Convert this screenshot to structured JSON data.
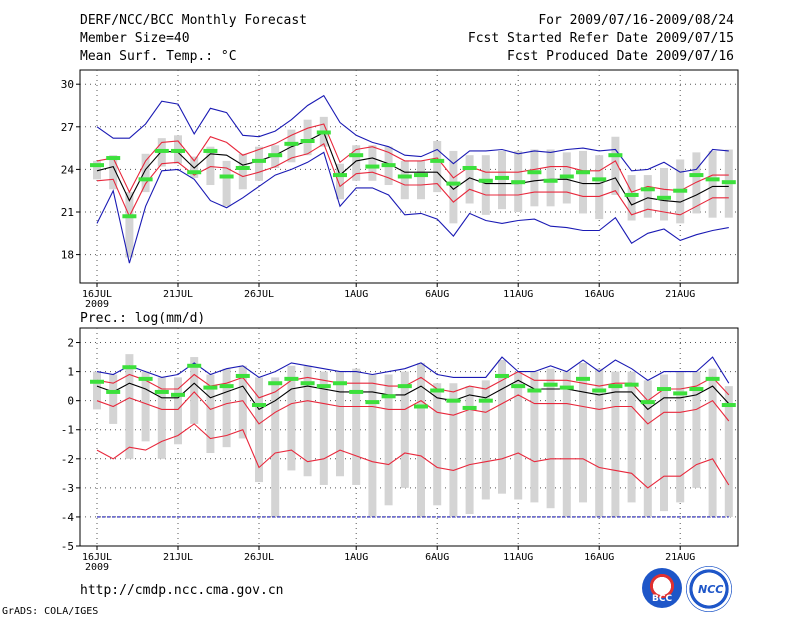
{
  "header": {
    "title": "DERF/NCC/BCC Monthly Forecast",
    "member_size": "Member Size=40",
    "variable": "Mean Surf. Temp.: °C",
    "period": "For 2009/07/16-2009/08/24",
    "started": "Fcst Started Refer Date 2009/07/15",
    "produced": "Fcst Produced Date 2009/07/16"
  },
  "footer": {
    "url": "http://cmdp.ncc.cma.gov.cn",
    "credit": "GrADS: COLA/IGES",
    "logo_left": "BCC",
    "logo_right": "NCC"
  },
  "colors": {
    "mean": "#000000",
    "spread": "#e8283c",
    "extreme": "#1a1ab4",
    "box": "#d4d4d4",
    "obs": "#3ce03c"
  },
  "chart_data": [
    {
      "type": "line",
      "title": "Mean Surf. Temp.: °C",
      "x_tick_labels": [
        "16JUL",
        "21JUL",
        "26JUL",
        "1AUG",
        "6AUG",
        "11AUG",
        "16AUG",
        "21AUG"
      ],
      "x_tick_index": [
        0,
        5,
        10,
        16,
        21,
        26,
        31,
        36
      ],
      "x_year_label": "2009",
      "ylim": [
        16,
        31
      ],
      "y_ticks": [
        18,
        21,
        24,
        27,
        30
      ],
      "n_days": 40,
      "series": [
        {
          "name": "Ensemble mean",
          "color": "#000000",
          "values": [
            23.9,
            24.2,
            21.8,
            24.0,
            25.3,
            25.2,
            24.1,
            25.1,
            25.0,
            24.3,
            24.6,
            25.0,
            25.6,
            26.0,
            26.6,
            23.6,
            24.6,
            24.8,
            24.4,
            23.8,
            23.8,
            23.8,
            22.6,
            23.4,
            23.0,
            23.0,
            23.0,
            23.2,
            23.3,
            23.3,
            23.0,
            23.0,
            23.4,
            21.5,
            22.0,
            21.8,
            21.7,
            22.2,
            22.8,
            22.8
          ]
        },
        {
          "name": "Upper spread",
          "color": "#e8283c",
          "values": [
            24.6,
            24.8,
            22.4,
            24.6,
            25.9,
            26.0,
            24.6,
            26.3,
            25.9,
            25.0,
            25.4,
            25.8,
            26.4,
            26.9,
            27.2,
            24.5,
            25.4,
            25.6,
            25.2,
            24.6,
            24.6,
            24.8,
            23.4,
            24.2,
            23.8,
            23.8,
            23.8,
            24.0,
            24.2,
            24.2,
            23.9,
            23.9,
            24.6,
            22.4,
            22.8,
            22.6,
            22.5,
            23.1,
            23.6,
            23.6
          ]
        },
        {
          "name": "Lower spread",
          "color": "#e8283c",
          "values": [
            23.2,
            23.3,
            20.7,
            23.0,
            24.4,
            24.5,
            23.6,
            24.2,
            24.1,
            23.5,
            23.8,
            24.2,
            24.8,
            25.1,
            25.8,
            22.8,
            23.7,
            23.8,
            23.4,
            22.9,
            22.9,
            23.0,
            21.7,
            22.6,
            22.2,
            22.2,
            22.2,
            22.4,
            22.4,
            22.4,
            22.1,
            22.1,
            22.5,
            20.8,
            21.2,
            21.0,
            20.8,
            21.4,
            22.0,
            22.0
          ]
        },
        {
          "name": "Maximum",
          "color": "#1a1ab4",
          "values": [
            27.0,
            26.2,
            26.2,
            27.2,
            28.8,
            28.6,
            26.5,
            28.3,
            28.0,
            26.4,
            26.3,
            26.7,
            27.5,
            28.5,
            29.2,
            27.3,
            26.4,
            25.9,
            25.6,
            25.0,
            24.9,
            25.4,
            24.4,
            25.3,
            25.3,
            25.4,
            25.1,
            25.3,
            25.2,
            25.4,
            25.5,
            25.3,
            25.4,
            23.9,
            24.0,
            24.5,
            23.8,
            24.0,
            25.4,
            25.3
          ]
        },
        {
          "name": "Minimum",
          "color": "#1a1ab4",
          "values": [
            20.2,
            22.5,
            17.4,
            21.4,
            23.9,
            24.0,
            23.3,
            21.8,
            21.3,
            22.0,
            22.8,
            23.6,
            24.0,
            24.5,
            25.2,
            21.4,
            22.7,
            22.7,
            22.2,
            20.8,
            20.9,
            20.5,
            19.3,
            20.9,
            20.4,
            20.2,
            20.4,
            20.5,
            20.0,
            19.9,
            19.7,
            19.7,
            20.6,
            18.8,
            19.5,
            19.8,
            19.0,
            19.4,
            19.7,
            19.9
          ]
        }
      ],
      "box_ranges": [
        [
          23.3,
          24.6
        ],
        [
          22.6,
          25.0
        ],
        [
          17.8,
          22.4
        ],
        [
          22.4,
          25.1
        ],
        [
          24.2,
          26.2
        ],
        [
          24.4,
          26.4
        ],
        [
          23.4,
          24.9
        ],
        [
          22.9,
          25.6
        ],
        [
          21.4,
          24.6
        ],
        [
          22.6,
          25.1
        ],
        [
          23.2,
          25.6
        ],
        [
          24.1,
          25.7
        ],
        [
          24.5,
          26.8
        ],
        [
          25.0,
          27.5
        ],
        [
          25.6,
          27.7
        ],
        [
          21.9,
          24.4
        ],
        [
          23.2,
          25.7
        ],
        [
          23.2,
          25.7
        ],
        [
          22.9,
          25.6
        ],
        [
          21.9,
          24.6
        ],
        [
          21.9,
          24.6
        ],
        [
          22.4,
          26.0
        ],
        [
          20.2,
          25.3
        ],
        [
          21.6,
          25.0
        ],
        [
          20.8,
          25.0
        ],
        [
          21.2,
          25.3
        ],
        [
          21.0,
          25.3
        ],
        [
          21.4,
          25.4
        ],
        [
          21.4,
          25.4
        ],
        [
          21.6,
          25.2
        ],
        [
          20.9,
          25.3
        ],
        [
          20.5,
          25.0
        ],
        [
          22.2,
          26.3
        ],
        [
          20.4,
          23.6
        ],
        [
          20.6,
          23.6
        ],
        [
          20.4,
          24.1
        ],
        [
          20.2,
          24.7
        ],
        [
          20.9,
          25.2
        ],
        [
          20.6,
          25.3
        ],
        [
          20.6,
          25.4
        ]
      ],
      "obs_marks": [
        24.3,
        24.8,
        20.7,
        23.3,
        25.3,
        25.3,
        23.8,
        25.3,
        23.5,
        24.1,
        24.6,
        25.0,
        25.8,
        26.0,
        26.6,
        23.6,
        25.0,
        24.2,
        24.3,
        23.5,
        23.6,
        24.6,
        23.0,
        24.1,
        23.2,
        23.4,
        23.1,
        23.8,
        23.2,
        23.5,
        23.8,
        23.3,
        25.0,
        22.2,
        22.6,
        22.0,
        22.5,
        23.6,
        23.3,
        23.1
      ]
    },
    {
      "type": "line",
      "title": "Prec.: log(mm/d)",
      "x_tick_labels": [
        "16JUL",
        "21JUL",
        "26JUL",
        "1AUG",
        "6AUG",
        "11AUG",
        "16AUG",
        "21AUG"
      ],
      "x_tick_index": [
        0,
        5,
        10,
        16,
        21,
        26,
        31,
        36
      ],
      "x_year_label": "2009",
      "ylim": [
        -5,
        2.5
      ],
      "y_ticks": [
        -5,
        -4,
        -3,
        -2,
        -1,
        0,
        1,
        2
      ],
      "n_days": 40,
      "series": [
        {
          "name": "Ensemble mean",
          "color": "#000000",
          "values": [
            0.5,
            0.3,
            0.6,
            0.4,
            0.1,
            0.1,
            0.6,
            0.1,
            0.3,
            0.5,
            -0.3,
            0.0,
            0.4,
            0.5,
            0.4,
            0.3,
            0.3,
            0.3,
            0.2,
            0.2,
            0.5,
            0.1,
            0.0,
            0.2,
            0.1,
            0.4,
            0.7,
            0.4,
            0.4,
            0.4,
            0.3,
            0.2,
            0.3,
            0.3,
            -0.3,
            0.1,
            0.1,
            0.2,
            0.5,
            -0.1
          ]
        },
        {
          "name": "Upper spread",
          "color": "#e8283c",
          "values": [
            0.7,
            0.6,
            0.9,
            0.7,
            0.4,
            0.4,
            0.9,
            0.5,
            0.6,
            0.8,
            0.1,
            0.3,
            0.7,
            0.8,
            0.7,
            0.6,
            0.6,
            0.6,
            0.5,
            0.5,
            0.8,
            0.4,
            0.3,
            0.5,
            0.4,
            0.7,
            1.0,
            0.7,
            0.7,
            0.7,
            0.6,
            0.5,
            0.6,
            0.6,
            0.0,
            0.4,
            0.4,
            0.5,
            0.8,
            0.2
          ]
        },
        {
          "name": "Lower spread",
          "color": "#e8283c",
          "values": [
            0.0,
            -0.2,
            0.1,
            -0.1,
            -0.3,
            -0.3,
            0.3,
            -0.3,
            -0.1,
            0.0,
            -0.8,
            -0.4,
            -0.1,
            0.0,
            -0.1,
            -0.2,
            -0.2,
            -0.2,
            -0.3,
            -0.3,
            0.0,
            -0.4,
            -0.5,
            -0.3,
            -0.4,
            -0.1,
            0.2,
            -0.1,
            -0.1,
            -0.1,
            -0.2,
            -0.3,
            -0.2,
            -0.2,
            -0.8,
            -0.4,
            -0.4,
            -0.3,
            0.0,
            -0.7
          ]
        },
        {
          "name": "Maximum",
          "color": "#1a1ab4",
          "values": [
            1.0,
            0.9,
            1.2,
            1.0,
            0.8,
            0.9,
            1.3,
            0.9,
            1.1,
            1.2,
            0.8,
            1.0,
            1.3,
            1.2,
            1.1,
            1.0,
            1.0,
            0.9,
            1.0,
            1.1,
            1.3,
            0.9,
            0.8,
            0.8,
            0.8,
            1.5,
            1.0,
            1.0,
            1.2,
            1.0,
            1.4,
            1.0,
            1.4,
            1.1,
            0.7,
            1.0,
            1.0,
            1.0,
            1.5,
            0.6
          ]
        },
        {
          "name": "Minimum",
          "color": "#1a1ab4",
          "values": [
            -4,
            -4,
            -4,
            -4,
            -4,
            -4,
            -4,
            -4,
            -4,
            -4,
            -4,
            -4,
            -4,
            -4,
            -4,
            -4,
            -4,
            -4,
            -4,
            -4,
            -4,
            -4,
            -4,
            -4,
            -4,
            -4,
            -4,
            -4,
            -4,
            -4,
            -4,
            -4,
            -4,
            -4,
            -4,
            -4,
            -4,
            -4,
            -4,
            -4
          ]
        },
        {
          "name": "Lower extreme",
          "color": "#e8283c",
          "values": [
            -1.7,
            -2.0,
            -1.6,
            -1.7,
            -1.4,
            -1.2,
            -0.8,
            -1.3,
            -1.2,
            -1.0,
            -2.3,
            -1.8,
            -1.7,
            -2.1,
            -2.0,
            -1.7,
            -1.9,
            -2.1,
            -2.2,
            -1.8,
            -1.9,
            -2.3,
            -2.4,
            -2.2,
            -2.1,
            -2.0,
            -1.8,
            -2.1,
            -2.0,
            -2.0,
            -2.0,
            -2.3,
            -2.4,
            -2.5,
            -3.0,
            -2.6,
            -2.6,
            -2.2,
            -2.0,
            -2.9
          ]
        }
      ],
      "box_ranges": [
        [
          -0.3,
          1.0
        ],
        [
          -0.8,
          0.9
        ],
        [
          -2.0,
          1.6
        ],
        [
          -1.4,
          1.0
        ],
        [
          -2.0,
          0.8
        ],
        [
          -1.5,
          0.8
        ],
        [
          -0.8,
          1.5
        ],
        [
          -1.8,
          0.9
        ],
        [
          -1.6,
          1.1
        ],
        [
          -1.3,
          1.2
        ],
        [
          -2.8,
          0.8
        ],
        [
          -4.0,
          0.8
        ],
        [
          -2.4,
          1.2
        ],
        [
          -2.6,
          1.2
        ],
        [
          -2.9,
          1.0
        ],
        [
          -2.6,
          1.0
        ],
        [
          -2.9,
          1.1
        ],
        [
          -4.0,
          0.9
        ],
        [
          -3.6,
          0.9
        ],
        [
          -3.0,
          1.0
        ],
        [
          -4.0,
          1.3
        ],
        [
          -3.6,
          0.6
        ],
        [
          -4.0,
          0.6
        ],
        [
          -3.9,
          0.5
        ],
        [
          -3.4,
          0.7
        ],
        [
          -3.2,
          1.4
        ],
        [
          -3.4,
          1.0
        ],
        [
          -3.5,
          1.0
        ],
        [
          -3.7,
          1.1
        ],
        [
          -4.0,
          1.0
        ],
        [
          -3.5,
          1.3
        ],
        [
          -4.0,
          1.1
        ],
        [
          -4.0,
          1.0
        ],
        [
          -3.5,
          1.0
        ],
        [
          -4.0,
          0.7
        ],
        [
          -3.8,
          0.9
        ],
        [
          -3.5,
          1.0
        ],
        [
          -3.0,
          1.0
        ],
        [
          -4.0,
          1.1
        ],
        [
          -4.0,
          0.5
        ]
      ],
      "obs_marks": [
        0.65,
        0.3,
        1.15,
        0.75,
        0.3,
        0.2,
        1.2,
        0.45,
        0.5,
        0.85,
        -0.15,
        0.6,
        0.75,
        0.6,
        0.5,
        0.6,
        0.3,
        -0.05,
        0.15,
        0.5,
        -0.2,
        0.35,
        0.0,
        -0.25,
        0.0,
        0.85,
        0.5,
        0.35,
        0.55,
        0.45,
        0.75,
        0.35,
        0.5,
        0.55,
        -0.05,
        0.4,
        0.25,
        0.4,
        0.75,
        -0.15
      ]
    }
  ]
}
